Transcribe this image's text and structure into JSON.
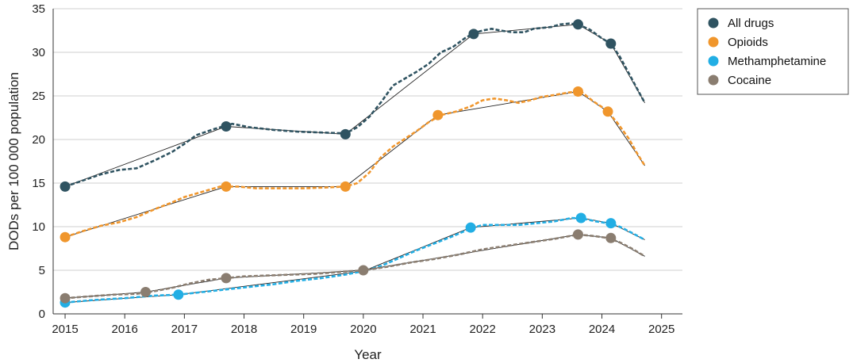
{
  "chart_data": {
    "type": "line",
    "title": "",
    "xlabel": "Year",
    "ylabel": "DODs per 100 000 population",
    "xlim": [
      2014.8,
      2025.35
    ],
    "ylim": [
      0,
      35
    ],
    "x_ticks": [
      2015,
      2016,
      2017,
      2018,
      2019,
      2020,
      2021,
      2022,
      2023,
      2024,
      2025
    ],
    "x_tick_labels": [
      "2015",
      "2016",
      "2017",
      "2018",
      "2019",
      "2020",
      "2021",
      "2022",
      "2023",
      "2024",
      "2025"
    ],
    "y_ticks": [
      0,
      5,
      10,
      15,
      20,
      25,
      30,
      35
    ],
    "y_tick_labels": [
      "0",
      "5",
      "10",
      "15",
      "20",
      "25",
      "30",
      "35"
    ],
    "grid": "horizontal",
    "legend_position": "top-right",
    "series": [
      {
        "name": "All drugs",
        "color": "#2f5361",
        "dashed": [
          [
            2015.0,
            14.6
          ],
          [
            2015.3,
            15.3
          ],
          [
            2015.6,
            16.0
          ],
          [
            2015.9,
            16.5
          ],
          [
            2016.2,
            16.7
          ],
          [
            2016.5,
            17.6
          ],
          [
            2016.8,
            18.6
          ],
          [
            2017.0,
            19.5
          ],
          [
            2017.2,
            20.5
          ],
          [
            2017.5,
            21.2
          ],
          [
            2017.8,
            21.8
          ],
          [
            2018.1,
            21.4
          ],
          [
            2018.5,
            21.1
          ],
          [
            2018.9,
            20.9
          ],
          [
            2019.3,
            20.8
          ],
          [
            2019.7,
            20.7
          ],
          [
            2019.9,
            21.4
          ],
          [
            2020.1,
            22.6
          ],
          [
            2020.3,
            24.3
          ],
          [
            2020.5,
            26.2
          ],
          [
            2020.7,
            27.0
          ],
          [
            2020.9,
            27.8
          ],
          [
            2021.1,
            28.7
          ],
          [
            2021.3,
            30.0
          ],
          [
            2021.5,
            30.6
          ],
          [
            2021.7,
            31.6
          ],
          [
            2021.85,
            32.2
          ],
          [
            2022.0,
            32.5
          ],
          [
            2022.15,
            32.7
          ],
          [
            2022.3,
            32.5
          ],
          [
            2022.5,
            32.3
          ],
          [
            2022.7,
            32.3
          ],
          [
            2022.85,
            32.7
          ],
          [
            2023.0,
            32.8
          ],
          [
            2023.15,
            32.9
          ],
          [
            2023.3,
            33.2
          ],
          [
            2023.45,
            33.3
          ],
          [
            2023.6,
            33.2
          ],
          [
            2023.8,
            32.6
          ],
          [
            2024.0,
            31.6
          ],
          [
            2024.15,
            31.0
          ],
          [
            2024.3,
            29.5
          ],
          [
            2024.45,
            27.6
          ],
          [
            2024.6,
            25.7
          ],
          [
            2024.72,
            24.2
          ]
        ],
        "trend": [
          [
            2015.0,
            14.6
          ],
          [
            2017.7,
            21.5
          ],
          [
            2019.7,
            20.6
          ],
          [
            2021.85,
            32.1
          ],
          [
            2023.6,
            33.2
          ],
          [
            2024.15,
            31.0
          ],
          [
            2024.72,
            24.2
          ]
        ],
        "joinpoints": [
          [
            2015.0,
            14.6
          ],
          [
            2017.7,
            21.5
          ],
          [
            2019.7,
            20.6
          ],
          [
            2021.85,
            32.1
          ],
          [
            2023.6,
            33.2
          ],
          [
            2024.15,
            31.0
          ]
        ]
      },
      {
        "name": "Opioids",
        "color": "#f0962c",
        "dashed": [
          [
            2015.0,
            8.8
          ],
          [
            2015.3,
            9.5
          ],
          [
            2015.6,
            10.1
          ],
          [
            2015.9,
            10.5
          ],
          [
            2016.2,
            11.1
          ],
          [
            2016.5,
            12.0
          ],
          [
            2016.8,
            12.8
          ],
          [
            2017.0,
            13.4
          ],
          [
            2017.3,
            14.0
          ],
          [
            2017.6,
            14.6
          ],
          [
            2017.9,
            14.6
          ],
          [
            2018.2,
            14.4
          ],
          [
            2018.6,
            14.4
          ],
          [
            2019.0,
            14.4
          ],
          [
            2019.4,
            14.5
          ],
          [
            2019.7,
            14.6
          ],
          [
            2019.9,
            15.0
          ],
          [
            2020.1,
            16.2
          ],
          [
            2020.3,
            18.0
          ],
          [
            2020.5,
            19.2
          ],
          [
            2020.7,
            20.1
          ],
          [
            2020.9,
            21.0
          ],
          [
            2021.1,
            22.0
          ],
          [
            2021.3,
            22.8
          ],
          [
            2021.55,
            23.2
          ],
          [
            2021.8,
            23.8
          ],
          [
            2022.0,
            24.5
          ],
          [
            2022.2,
            24.7
          ],
          [
            2022.4,
            24.5
          ],
          [
            2022.6,
            24.2
          ],
          [
            2022.8,
            24.5
          ],
          [
            2023.0,
            24.9
          ],
          [
            2023.2,
            25.1
          ],
          [
            2023.45,
            25.4
          ],
          [
            2023.65,
            25.5
          ],
          [
            2023.85,
            24.4
          ],
          [
            2024.05,
            23.5
          ],
          [
            2024.25,
            22.0
          ],
          [
            2024.45,
            20.1
          ],
          [
            2024.6,
            18.3
          ],
          [
            2024.72,
            17.0
          ]
        ],
        "trend": [
          [
            2015.0,
            8.8
          ],
          [
            2017.7,
            14.6
          ],
          [
            2019.7,
            14.6
          ],
          [
            2021.25,
            22.8
          ],
          [
            2023.6,
            25.5
          ],
          [
            2024.1,
            23.2
          ],
          [
            2024.72,
            17.0
          ]
        ],
        "joinpoints": [
          [
            2015.0,
            8.8
          ],
          [
            2017.7,
            14.6
          ],
          [
            2019.7,
            14.6
          ],
          [
            2021.25,
            22.8
          ],
          [
            2023.6,
            25.5
          ],
          [
            2024.1,
            23.2
          ]
        ]
      },
      {
        "name": "Methamphetamine",
        "color": "#22aee4",
        "dashed": [
          [
            2015.0,
            1.3
          ],
          [
            2015.5,
            1.6
          ],
          [
            2016.0,
            1.8
          ],
          [
            2016.5,
            2.1
          ],
          [
            2016.9,
            2.2
          ],
          [
            2017.3,
            2.5
          ],
          [
            2017.7,
            2.8
          ],
          [
            2018.1,
            3.1
          ],
          [
            2018.5,
            3.4
          ],
          [
            2018.9,
            3.8
          ],
          [
            2019.3,
            4.1
          ],
          [
            2019.7,
            4.5
          ],
          [
            2020.0,
            4.9
          ],
          [
            2020.3,
            5.5
          ],
          [
            2020.6,
            6.4
          ],
          [
            2020.9,
            7.3
          ],
          [
            2021.2,
            8.1
          ],
          [
            2021.5,
            8.9
          ],
          [
            2021.8,
            9.8
          ],
          [
            2022.0,
            10.2
          ],
          [
            2022.3,
            10.2
          ],
          [
            2022.6,
            10.2
          ],
          [
            2022.9,
            10.4
          ],
          [
            2023.2,
            10.6
          ],
          [
            2023.5,
            11.0
          ],
          [
            2023.7,
            10.9
          ],
          [
            2023.9,
            10.6
          ],
          [
            2024.1,
            10.4
          ],
          [
            2024.3,
            10.0
          ],
          [
            2024.5,
            9.3
          ],
          [
            2024.72,
            8.5
          ]
        ],
        "trend": [
          [
            2015.0,
            1.3
          ],
          [
            2016.9,
            2.2
          ],
          [
            2020.0,
            4.9
          ],
          [
            2021.8,
            9.9
          ],
          [
            2023.65,
            11.0
          ],
          [
            2024.15,
            10.4
          ],
          [
            2024.72,
            8.5
          ]
        ],
        "joinpoints": [
          [
            2015.0,
            1.3
          ],
          [
            2016.9,
            2.2
          ],
          [
            2021.8,
            9.9
          ],
          [
            2023.65,
            11.0
          ],
          [
            2024.15,
            10.4
          ]
        ]
      },
      {
        "name": "Cocaine",
        "color": "#8a7d70",
        "dashed": [
          [
            2015.0,
            1.8
          ],
          [
            2015.4,
            2.0
          ],
          [
            2015.8,
            2.2
          ],
          [
            2016.2,
            2.3
          ],
          [
            2016.5,
            2.6
          ],
          [
            2016.8,
            3.0
          ],
          [
            2017.1,
            3.5
          ],
          [
            2017.4,
            3.9
          ],
          [
            2017.7,
            4.1
          ],
          [
            2018.0,
            4.3
          ],
          [
            2018.4,
            4.4
          ],
          [
            2018.8,
            4.5
          ],
          [
            2019.2,
            4.6
          ],
          [
            2019.6,
            4.8
          ],
          [
            2020.0,
            5.0
          ],
          [
            2020.4,
            5.4
          ],
          [
            2020.8,
            5.9
          ],
          [
            2021.2,
            6.3
          ],
          [
            2021.6,
            6.8
          ],
          [
            2022.0,
            7.4
          ],
          [
            2022.4,
            7.8
          ],
          [
            2022.8,
            8.2
          ],
          [
            2023.2,
            8.6
          ],
          [
            2023.6,
            9.1
          ],
          [
            2023.9,
            8.9
          ],
          [
            2024.1,
            8.7
          ],
          [
            2024.3,
            8.2
          ],
          [
            2024.5,
            7.5
          ],
          [
            2024.72,
            6.6
          ]
        ],
        "trend": [
          [
            2015.0,
            1.8
          ],
          [
            2016.35,
            2.5
          ],
          [
            2017.7,
            4.1
          ],
          [
            2020.0,
            5.0
          ],
          [
            2023.6,
            9.1
          ],
          [
            2024.15,
            8.7
          ],
          [
            2024.72,
            6.6
          ]
        ],
        "joinpoints": [
          [
            2015.0,
            1.8
          ],
          [
            2016.35,
            2.5
          ],
          [
            2017.7,
            4.1
          ],
          [
            2020.0,
            5.0
          ],
          [
            2023.6,
            9.1
          ],
          [
            2024.15,
            8.7
          ]
        ]
      }
    ]
  }
}
